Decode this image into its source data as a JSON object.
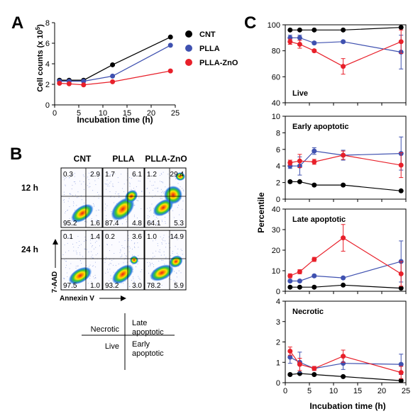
{
  "panel_letters": {
    "a": "A",
    "b": "B",
    "c": "C"
  },
  "colors": {
    "cnt": "#000000",
    "plla": "#3f51b0",
    "zno": "#e8202a"
  },
  "panel_a": {
    "xlabel": "Incubation time (h)",
    "ylabel": "Cell counts (x 10",
    "ylabel_exp": "5",
    "ylabel_close": ")",
    "x_ticks": [
      0,
      5,
      10,
      15,
      20,
      25
    ],
    "y_ticks": [
      0,
      2,
      4,
      6,
      8
    ]
  },
  "legend": [
    "CNT",
    "PLLA",
    "PLLA-ZnO"
  ],
  "panel_b": {
    "columns": [
      "CNT",
      "PLLA",
      "PLLA-ZnO"
    ],
    "rows": [
      "12 h",
      "24 h"
    ],
    "y_axis_label": "7-AAD",
    "x_axis_label": "Annexin V",
    "quadrants": [
      [
        [
          "0.3",
          "2.9",
          "95.2",
          "1.6"
        ],
        [
          "1.7",
          "6.1",
          "87.4",
          "4.8"
        ],
        [
          "1.2",
          "29.4",
          "64.1",
          "5.3"
        ]
      ],
      [
        [
          "0.1",
          "1.4",
          "97.5",
          "1.0"
        ],
        [
          "0.2",
          "3.6",
          "93.2",
          "3.0"
        ],
        [
          "1.0",
          "14.9",
          "78.2",
          "5.9"
        ]
      ]
    ],
    "key": {
      "necrotic": "Necrotic",
      "late_1": "Late",
      "late_2": "apoptotic",
      "live": "Live",
      "early_1": "Early",
      "early_2": "apoptotic"
    }
  },
  "panel_c": {
    "ylabel": "Percentile",
    "xlabel": "Incubation time (h)",
    "x_ticks": [
      0,
      5,
      10,
      15,
      20,
      25
    ],
    "subplots": [
      {
        "label": "Live",
        "y_ticks": [
          40,
          60,
          80,
          100
        ]
      },
      {
        "label": "Early apoptotic",
        "y_ticks": [
          0,
          2,
          4,
          6,
          8,
          10
        ]
      },
      {
        "label": "Late apoptotic",
        "y_ticks": [
          0,
          10,
          20,
          30,
          40
        ]
      },
      {
        "label": "Necrotic",
        "y_ticks": [
          0,
          1,
          2,
          3,
          4
        ]
      }
    ]
  },
  "chart_data": [
    {
      "type": "line",
      "panel": "A",
      "xlabel": "Incubation time (h)",
      "ylabel": "Cell counts (x 10^5)",
      "xlim": [
        0,
        25
      ],
      "ylim": [
        0,
        8
      ],
      "legend": "top-right",
      "x": [
        1,
        3,
        6,
        12,
        24
      ],
      "series": [
        {
          "name": "CNT",
          "values": [
            2.4,
            2.4,
            2.4,
            3.9,
            6.6
          ]
        },
        {
          "name": "PLLA",
          "values": [
            2.3,
            2.3,
            2.3,
            2.8,
            5.8
          ]
        },
        {
          "name": "PLLA-ZnO",
          "values": [
            2.1,
            2.05,
            1.95,
            2.25,
            3.3
          ]
        }
      ]
    },
    {
      "type": "line",
      "panel": "C",
      "subplot": "Live",
      "xlim": [
        0,
        25
      ],
      "ylim": [
        40,
        100
      ],
      "x": [
        1,
        3,
        6,
        12,
        24
      ],
      "series": [
        {
          "name": "CNT",
          "values": [
            96,
            96,
            96,
            96,
            98
          ],
          "errors": [
            0.5,
            0.5,
            0.5,
            0.5,
            0.5
          ]
        },
        {
          "name": "PLLA",
          "values": [
            90,
            90,
            86,
            87,
            79
          ],
          "errors": [
            2,
            2,
            1,
            1,
            13
          ]
        },
        {
          "name": "PLLA-ZnO",
          "values": [
            87,
            85,
            80,
            68,
            87
          ],
          "errors": [
            2,
            3,
            1,
            6,
            9
          ]
        }
      ]
    },
    {
      "type": "line",
      "panel": "C",
      "subplot": "Early apoptotic",
      "xlim": [
        0,
        25
      ],
      "ylim": [
        0,
        10
      ],
      "x": [
        1,
        3,
        6,
        12,
        24
      ],
      "series": [
        {
          "name": "CNT",
          "values": [
            2.1,
            2.1,
            1.7,
            1.7,
            1.0
          ],
          "errors": [
            0.15,
            0.1,
            0.1,
            0.1,
            0.1
          ]
        },
        {
          "name": "PLLA",
          "values": [
            4.0,
            4.0,
            5.8,
            5.3,
            5.5
          ],
          "errors": [
            0.3,
            1.1,
            0.4,
            0.6,
            2.0
          ]
        },
        {
          "name": "PLLA-ZnO",
          "values": [
            4.4,
            4.6,
            4.5,
            5.3,
            4.1
          ],
          "errors": [
            0.3,
            0.8,
            0.3,
            0.5,
            1.5
          ]
        }
      ]
    },
    {
      "type": "line",
      "panel": "C",
      "subplot": "Late apoptotic",
      "xlim": [
        0,
        25
      ],
      "ylim": [
        0,
        40
      ],
      "x": [
        1,
        3,
        6,
        12,
        24
      ],
      "series": [
        {
          "name": "CNT",
          "values": [
            2,
            2,
            2,
            3,
            1.5
          ],
          "errors": [
            0.3,
            0.3,
            0.3,
            0.3,
            0.3
          ]
        },
        {
          "name": "PLLA",
          "values": [
            5,
            5,
            7.5,
            6.5,
            14.5
          ],
          "errors": [
            0.5,
            0.5,
            0.5,
            0.5,
            10
          ]
        },
        {
          "name": "PLLA-ZnO",
          "values": [
            7.5,
            9.5,
            15.5,
            26,
            8.5
          ],
          "errors": [
            1,
            1,
            1,
            6.5,
            6
          ]
        }
      ]
    },
    {
      "type": "line",
      "panel": "C",
      "subplot": "Necrotic",
      "xlim": [
        0,
        25
      ],
      "ylim": [
        0,
        4
      ],
      "x": [
        1,
        3,
        6,
        12,
        24
      ],
      "series": [
        {
          "name": "CNT",
          "values": [
            0.4,
            0.45,
            0.4,
            0.3,
            0.1
          ],
          "errors": [
            0.05,
            0.05,
            0.05,
            0.05,
            0.05
          ]
        },
        {
          "name": "PLLA",
          "values": [
            1.25,
            1.0,
            0.7,
            0.95,
            0.9
          ],
          "errors": [
            0.3,
            0.5,
            0.1,
            0.3,
            0.5
          ]
        },
        {
          "name": "PLLA-ZnO",
          "values": [
            1.55,
            0.9,
            0.7,
            1.3,
            0.5
          ],
          "errors": [
            0.2,
            0.3,
            0.1,
            0.3,
            0.3
          ]
        }
      ]
    }
  ]
}
